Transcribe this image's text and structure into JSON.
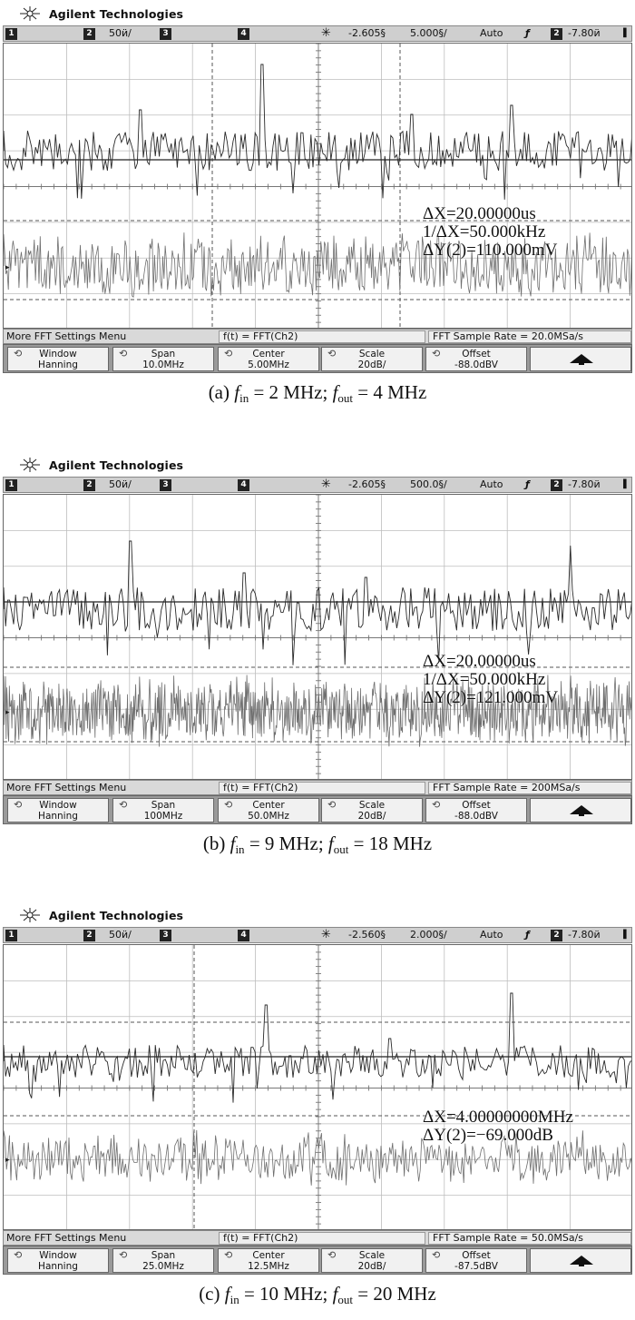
{
  "brand": "Agilent Technologies",
  "panels": [
    {
      "id": "a",
      "status": {
        "ch1": "1",
        "ch2": "2",
        "scale": "50ӥ/",
        "ch3": "3",
        "ch4": "4",
        "delay": "-2.605§",
        "timebase": "5.000§/",
        "mode": "Auto",
        "edge": "ƒ",
        "trig_ch": "2",
        "level": "-7.80ӥ"
      },
      "measurements": [
        "ΔX=20.00000us",
        "1/ΔX=50.000kHz",
        "ΔY(2)=110.000mV"
      ],
      "menu": {
        "title": "More FFT Settings Menu",
        "function": "f(t) = FFT(Ch2)",
        "sample_rate": "FFT Sample Rate = 20.0MSa/s"
      },
      "softkeys": [
        {
          "label": "Window",
          "value": "Hanning"
        },
        {
          "label": "Span",
          "value": "10.0MHz"
        },
        {
          "label": "Center",
          "value": "5.00MHz"
        },
        {
          "label": "Scale",
          "value": "20dB/"
        },
        {
          "label": "Offset",
          "value": "-88.0dBV"
        }
      ],
      "caption": {
        "label": "(a)",
        "fin_sym": "f",
        "fin_sub": "in",
        "fin_val": "= 2 MHz;",
        "fout_sym": "f",
        "fout_sub": "out",
        "fout_val": "= 4 MHz"
      }
    },
    {
      "id": "b",
      "status": {
        "ch1": "1",
        "ch2": "2",
        "scale": "50ӥ/",
        "ch3": "3",
        "ch4": "4",
        "delay": "-2.605§",
        "timebase": "500.0§/",
        "mode": "Auto",
        "edge": "ƒ",
        "trig_ch": "2",
        "level": "-7.80ӥ"
      },
      "measurements": [
        "ΔX=20.00000us",
        "1/ΔX=50.000kHz",
        "ΔY(2)=121.000mV"
      ],
      "menu": {
        "title": "More FFT Settings Menu",
        "function": "f(t) = FFT(Ch2)",
        "sample_rate": "FFT Sample Rate = 200MSa/s"
      },
      "softkeys": [
        {
          "label": "Window",
          "value": "Hanning"
        },
        {
          "label": "Span",
          "value": "100MHz"
        },
        {
          "label": "Center",
          "value": "50.0MHz"
        },
        {
          "label": "Scale",
          "value": "20dB/"
        },
        {
          "label": "Offset",
          "value": "-88.0dBV"
        }
      ],
      "caption": {
        "label": "(b)",
        "fin_sym": "f",
        "fin_sub": "in",
        "fin_val": "= 9 MHz;",
        "fout_sym": "f",
        "fout_sub": "out",
        "fout_val": "= 18 MHz"
      }
    },
    {
      "id": "c",
      "status": {
        "ch1": "1",
        "ch2": "2",
        "scale": "50ӥ/",
        "ch3": "3",
        "ch4": "4",
        "delay": "-2.560§",
        "timebase": "2.000§/",
        "mode": "Auto",
        "edge": "ƒ",
        "trig_ch": "2",
        "level": "-7.80ӥ"
      },
      "measurements": [
        "ΔX=4.00000000MHz",
        "ΔY(2)=−69.000dB"
      ],
      "menu": {
        "title": "More FFT Settings Menu",
        "function": "f(t) = FFT(Ch2)",
        "sample_rate": "FFT Sample Rate = 50.0MSa/s"
      },
      "softkeys": [
        {
          "label": "Window",
          "value": "Hanning"
        },
        {
          "label": "Span",
          "value": "25.0MHz"
        },
        {
          "label": "Center",
          "value": "12.5MHz"
        },
        {
          "label": "Scale",
          "value": "20dB/"
        },
        {
          "label": "Offset",
          "value": "-87.5dBV"
        }
      ],
      "caption": {
        "label": "(c)",
        "fin_sym": "f",
        "fin_sub": "in",
        "fin_val": "= 10 MHz;",
        "fout_sym": "f",
        "fout_sub": "out",
        "fout_val": "= 20 MHz"
      }
    }
  ],
  "trace_colors": {
    "spectrum": "#2a2a2a",
    "signal": "#6e6e6e"
  },
  "icons": {
    "logo": "spark-logo-icon",
    "trigger": "trigger-spark-icon",
    "knob": "rotary-knob-icon",
    "up": "up-arrow-icon"
  }
}
